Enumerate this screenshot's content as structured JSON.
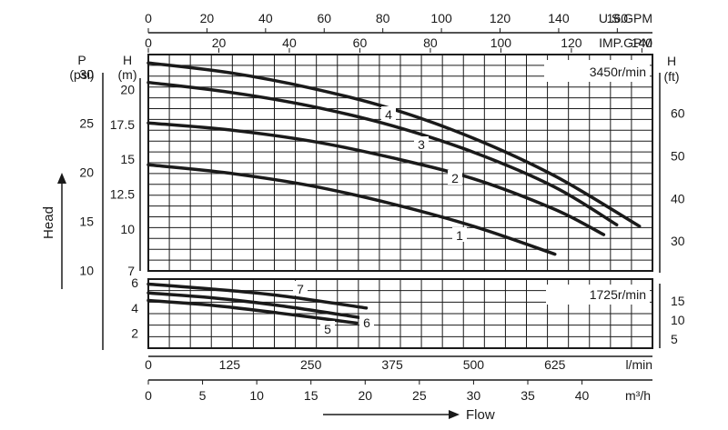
{
  "chart_data": {
    "type": "line",
    "title": "",
    "colors": {
      "ink": "#1a1a1a",
      "grid": "#1a1a1a",
      "background": "#ffffff"
    },
    "top_axes": [
      {
        "unit": "U.S.GPM",
        "ticks": [
          0,
          20,
          40,
          60,
          80,
          100,
          120,
          140,
          160
        ],
        "range": [
          0,
          172
        ]
      },
      {
        "unit": "IMP.GPM",
        "ticks": [
          0,
          20,
          40,
          60,
          80,
          100,
          120,
          140
        ],
        "range": [
          0,
          143
        ]
      }
    ],
    "bottom_axes": [
      {
        "unit": "l/min",
        "ticks": [
          0,
          125,
          250,
          375,
          500,
          625
        ],
        "range": [
          0,
          775
        ]
      },
      {
        "unit": "m³/h",
        "ticks": [
          0,
          5,
          10,
          15,
          20,
          25,
          30,
          35,
          40
        ],
        "range": [
          0,
          46.5
        ]
      }
    ],
    "xlabel": "Flow",
    "ylabel": "Head",
    "panels": [
      {
        "speed_label": "3450r/min",
        "y_m_range": [
          7,
          22.5
        ],
        "y_m_ticks": [
          "7",
          "10",
          "12.5",
          "15",
          "17.5",
          "20"
        ],
        "y_m_tick_values": [
          7,
          10,
          12.5,
          15,
          17.5,
          20
        ],
        "y_m_unit_lines": [
          "H",
          "(m)"
        ],
        "y_psi_unit_lines": [
          "P",
          "(psi)"
        ],
        "y_psi_ticks": [
          "10",
          "15",
          "20",
          "25",
          "30"
        ],
        "y_psi_tick_values": [
          10,
          15,
          20,
          25,
          30
        ],
        "y_ft_unit_lines": [
          "H",
          "(ft)"
        ],
        "y_ft_ticks": [
          "30",
          "40",
          "50",
          "60"
        ],
        "y_ft_tick_values": [
          30,
          40,
          50,
          60
        ],
        "series": [
          {
            "name": "1",
            "x_lpm": [
              0,
              125,
              250,
              375,
              500,
              625
            ],
            "y_m": [
              14.6,
              14.0,
              13.1,
              11.8,
              10.2,
              8.2
            ]
          },
          {
            "name": "2",
            "x_lpm": [
              0,
              125,
              250,
              375,
              500,
              625,
              700
            ],
            "y_m": [
              17.6,
              17.1,
              16.3,
              15.1,
              13.6,
              11.4,
              9.6
            ]
          },
          {
            "name": "3",
            "x_lpm": [
              0,
              125,
              250,
              375,
              500,
              625,
              720
            ],
            "y_m": [
              20.5,
              19.8,
              18.8,
              17.4,
              15.5,
              13.0,
              10.3
            ]
          },
          {
            "name": "4",
            "x_lpm": [
              0,
              125,
              250,
              375,
              500,
              625,
              755
            ],
            "y_m": [
              21.9,
              21.2,
              20.1,
              18.6,
              16.5,
              13.8,
              10.2
            ]
          }
        ]
      },
      {
        "speed_label": "1725r/min",
        "y_m_range": [
          0.8,
          6.3
        ],
        "y_m_ticks": [
          "2",
          "4",
          "6"
        ],
        "y_m_tick_values": [
          2,
          4,
          6
        ],
        "y_ft_ticks": [
          "5",
          "10",
          "15"
        ],
        "y_ft_tick_values": [
          5,
          10,
          15
        ],
        "series": [
          {
            "name": "5",
            "x_lpm": [
              0,
              100,
              200,
              320
            ],
            "y_m": [
              4.6,
              4.2,
              3.6,
              2.8
            ]
          },
          {
            "name": "6",
            "x_lpm": [
              0,
              100,
              200,
              330
            ],
            "y_m": [
              5.2,
              4.8,
              4.2,
              3.2
            ]
          },
          {
            "name": "7",
            "x_lpm": [
              0,
              100,
              200,
              335
            ],
            "y_m": [
              5.9,
              5.5,
              5.0,
              4.0
            ]
          }
        ]
      }
    ]
  }
}
